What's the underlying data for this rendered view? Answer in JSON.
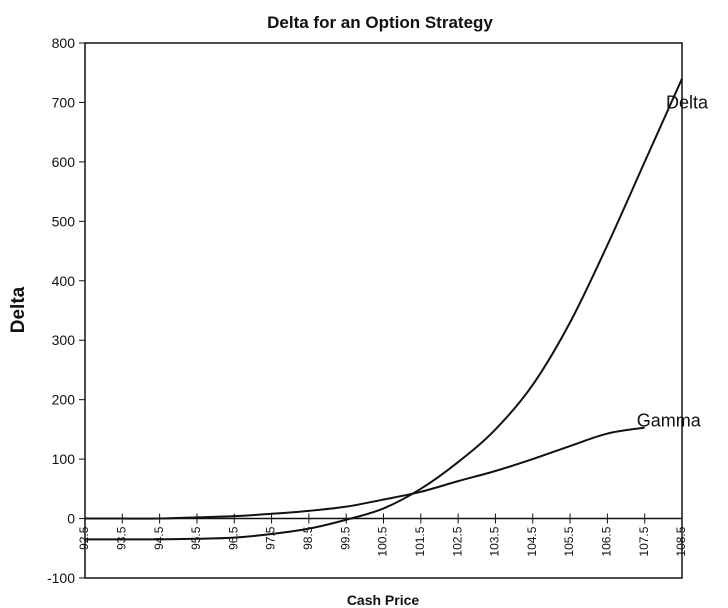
{
  "chart_data": {
    "type": "line",
    "title": "Delta for an Option Strategy",
    "xlabel": "Cash Price",
    "ylabel": "Delta",
    "x_tick_labels": [
      "92.5",
      "93.5",
      "94.5",
      "95.5",
      "96.5",
      "97.5",
      "98.5",
      "99.5",
      "100.5",
      "101.5",
      "102.5",
      "103.5",
      "104.5",
      "105.5",
      "106.5",
      "107.5",
      "108.5"
    ],
    "y_ticks": [
      -100,
      0,
      100,
      200,
      300,
      400,
      500,
      600,
      700,
      800
    ],
    "xlim": [
      92.5,
      108.5
    ],
    "ylim": [
      -100,
      800
    ],
    "grid": false,
    "legend": "inline labels",
    "series": [
      {
        "name": "Delta",
        "x": [
          92.5,
          93.5,
          94.5,
          95.5,
          96.5,
          97.5,
          98.5,
          99.5,
          100.5,
          101.5,
          102.5,
          103.5,
          104.5,
          105.5,
          106.5,
          107.5,
          108.5
        ],
        "values": [
          -35,
          -35,
          -35,
          -34,
          -32,
          -26,
          -17,
          -2,
          17,
          50,
          95,
          150,
          225,
          330,
          460,
          600,
          740
        ]
      },
      {
        "name": "Gamma",
        "x": [
          92.5,
          93.5,
          94.5,
          95.5,
          96.5,
          97.5,
          98.5,
          99.5,
          100.5,
          101.5,
          102.5,
          103.5,
          104.5,
          105.5,
          106.5,
          107.5
        ],
        "values": [
          0,
          0,
          0,
          2,
          4,
          8,
          13,
          20,
          32,
          45,
          63,
          80,
          100,
          122,
          143,
          153
        ]
      }
    ]
  }
}
